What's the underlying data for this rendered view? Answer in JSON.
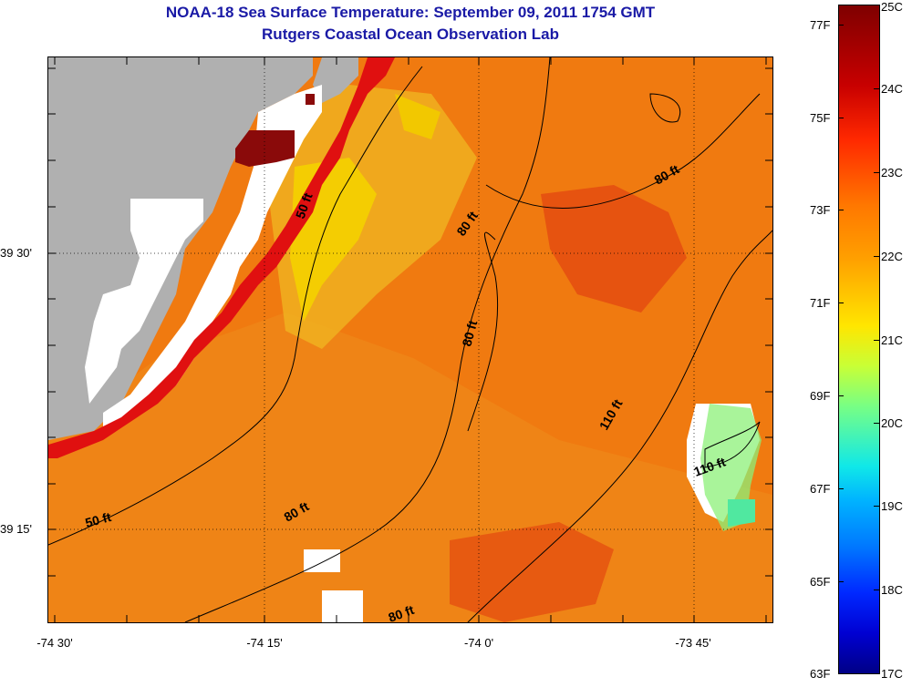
{
  "title": {
    "line1": "NOAA-18 Sea Surface Temperature:  September 09, 2011 1754 GMT",
    "line2": "Rutgers Coastal Ocean Observation Lab"
  },
  "map": {
    "x_ticks": [
      "-74 30'",
      "-74 15'",
      "-74 0'",
      "-73 45'"
    ],
    "y_ticks": [
      "39 30'",
      "39 15'"
    ],
    "contour_labels": [
      "50 ft",
      "50 ft",
      "80 ft",
      "80 ft",
      "80 ft",
      "80 ft",
      "80 ft",
      "110 ft",
      "110 ft"
    ],
    "colors": {
      "land": "#b0b0b0",
      "cloud_mask": "#ffffff",
      "sst_base": "#f07a10",
      "warm_patch": "#e24010",
      "hot_edge": "#e01010",
      "max_temp": "#8a0a0a",
      "cool_yellow": "#f2c800",
      "cool_green": "#8cf078"
    }
  },
  "colorbar": {
    "fahrenheit_labels": [
      "77F",
      "75F",
      "73F",
      "71F",
      "69F",
      "67F",
      "65F",
      "63F"
    ],
    "celsius_labels": [
      "25C",
      "24C",
      "23C",
      "22C",
      "21C",
      "20C",
      "19C",
      "18C",
      "17C"
    ],
    "range_celsius": [
      17,
      25
    ]
  }
}
